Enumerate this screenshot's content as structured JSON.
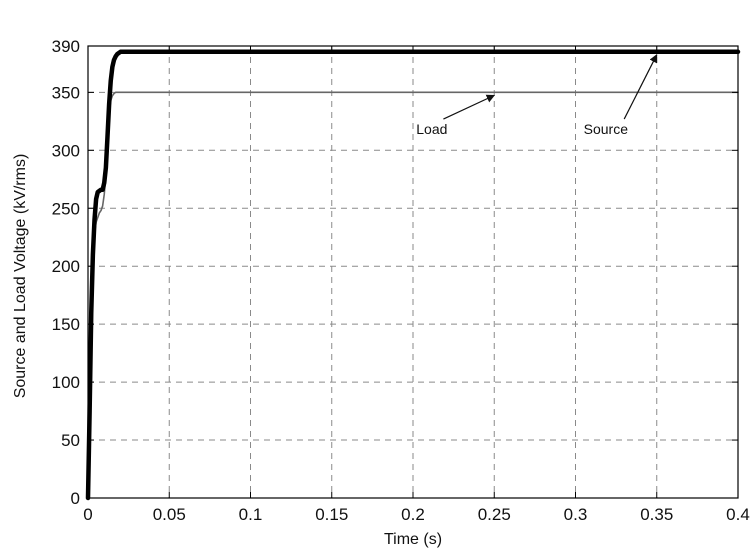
{
  "chart_data": {
    "type": "line",
    "title": "",
    "xlabel": "Time (s)",
    "ylabel": "Source and Load Voltage (kV/rms)",
    "xlim": [
      0,
      0.4
    ],
    "ylim": [
      0,
      390
    ],
    "xticks": [
      0,
      0.05,
      0.1,
      0.15,
      0.2,
      0.25,
      0.3,
      0.35,
      0.4
    ],
    "xtick_labels": [
      "0",
      "0.05",
      "0.1",
      "0.15",
      "0.2",
      "0.25",
      "0.3",
      "0.35",
      "0.4"
    ],
    "yticks": [
      0,
      50,
      100,
      150,
      200,
      250,
      300,
      350,
      390
    ],
    "ytick_labels": [
      "0",
      "50",
      "100",
      "150",
      "200",
      "250",
      "300",
      "350",
      "390"
    ],
    "grid": true,
    "series": [
      {
        "name": "Source",
        "color": "#000000",
        "style": "thick",
        "x": [
          0,
          0.001,
          0.002,
          0.003,
          0.004,
          0.005,
          0.006,
          0.007,
          0.008,
          0.009,
          0.01,
          0.011,
          0.012,
          0.013,
          0.014,
          0.015,
          0.016,
          0.017,
          0.018,
          0.019,
          0.02,
          0.022,
          0.025,
          0.4
        ],
        "y": [
          0,
          75,
          160,
          210,
          240,
          258,
          264,
          265,
          266,
          266,
          272,
          285,
          312,
          340,
          360,
          372,
          378,
          381,
          383,
          384,
          385,
          385,
          385,
          385
        ]
      },
      {
        "name": "Load",
        "color": "#666666",
        "style": "thin",
        "x": [
          0,
          0.001,
          0.002,
          0.003,
          0.004,
          0.005,
          0.006,
          0.007,
          0.008,
          0.009,
          0.01,
          0.011,
          0.012,
          0.013,
          0.014,
          0.015,
          0.016,
          0.017,
          0.018,
          0.019,
          0.02,
          0.022,
          0.025,
          0.4
        ],
        "y": [
          0,
          65,
          150,
          205,
          228,
          238,
          242,
          246,
          248,
          252,
          262,
          278,
          305,
          330,
          343,
          347,
          349,
          350,
          350,
          350,
          350,
          350,
          350,
          350
        ]
      }
    ],
    "annotations": [
      {
        "text": "Load",
        "x": 0.202,
        "y": 314,
        "arrow_to": [
          0.25,
          350
        ]
      },
      {
        "text": "Source",
        "x": 0.305,
        "y": 314,
        "arrow_to": [
          0.35,
          385
        ]
      }
    ]
  }
}
